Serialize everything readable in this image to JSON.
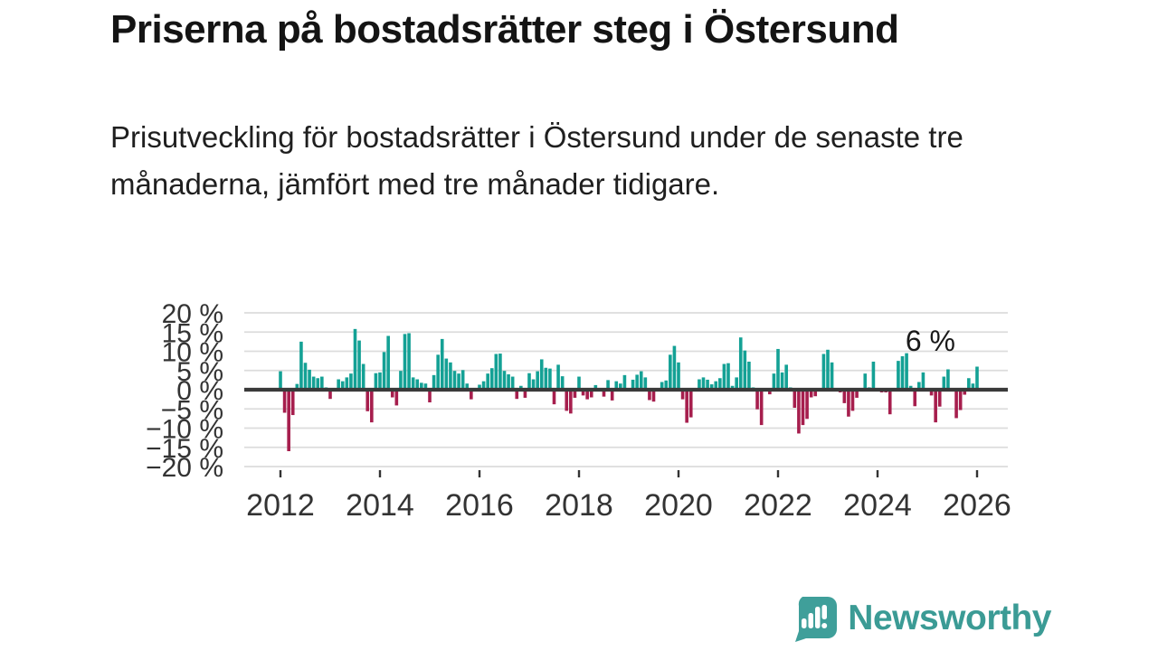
{
  "page": {
    "title": "Priserna på bostadsrätter steg i Östersund",
    "subtitle": "Prisutveckling för bostadsrätter i Östersund under de senaste tre månaderna, jämfört med tre månader tidigare."
  },
  "chart_data": {
    "type": "bar",
    "title": "Priserna på bostadsrätter steg i Östersund",
    "xlabel": "",
    "ylabel": "",
    "unit": "%",
    "frequency": "monthly",
    "start_month": "2012-01",
    "end_month": "2026-01",
    "ylim": [
      -20,
      20
    ],
    "grid": true,
    "legend": "none",
    "yticks": [
      20,
      15,
      10,
      5,
      0,
      -5,
      -10,
      -15,
      -20
    ],
    "ytick_labels": [
      "20 %",
      "15 %",
      "10 %",
      "5 %",
      "0 %",
      "−5 %",
      "−10 %",
      "−15 %",
      "−20 %"
    ],
    "xtick_labels": [
      "2012",
      "2014",
      "2016",
      "2018",
      "2020",
      "2022",
      "2024",
      "2026"
    ],
    "annotation": {
      "text": "6 %",
      "value": 6,
      "month": "2026-01"
    },
    "colors": {
      "positive": "#14a195",
      "negative": "#a61e4d",
      "zero_line": "#3a3a3a",
      "gridline": "#dcdcdc",
      "axis_text": "#333333",
      "annotation_text": "#1a1a1a"
    },
    "values": [
      4.8,
      -6.0,
      -16.0,
      -6.6,
      1.5,
      12.5,
      7.0,
      5.2,
      3.4,
      3.0,
      3.4,
      0.6,
      -2.4,
      0.0,
      2.7,
      2.2,
      3.2,
      4.2,
      15.8,
      12.8,
      6.7,
      -5.6,
      -8.5,
      4.3,
      4.5,
      9.8,
      14.0,
      -2.0,
      -4.1,
      4.9,
      14.5,
      14.7,
      3.2,
      2.7,
      1.8,
      1.6,
      -3.3,
      3.8,
      9.1,
      13.2,
      8.1,
      7.1,
      4.9,
      4.2,
      5.1,
      1.6,
      -2.5,
      0.0,
      1.3,
      2.2,
      4.2,
      5.6,
      9.3,
      9.4,
      4.9,
      4.0,
      3.4,
      -2.4,
      1.0,
      -2.1,
      4.3,
      2.7,
      4.8,
      7.9,
      5.7,
      5.5,
      -3.8,
      6.5,
      3.5,
      -5.5,
      -6.2,
      -2.1,
      3.4,
      -1.5,
      -2.5,
      -2.0,
      1.2,
      0.0,
      -1.8,
      2.5,
      -2.8,
      2.2,
      1.6,
      3.8,
      0.0,
      2.6,
      3.9,
      4.8,
      3.2,
      -2.7,
      -3.1,
      0.0,
      2.0,
      2.4,
      9.1,
      11.4,
      7.1,
      -2.5,
      -8.6,
      -7.2,
      0.0,
      2.7,
      3.2,
      2.6,
      1.4,
      2.2,
      3.0,
      6.7,
      6.9,
      1.0,
      3.2,
      13.6,
      10.2,
      7.3,
      0.6,
      -5.1,
      -9.2,
      0.0,
      -1.2,
      4.2,
      10.6,
      4.5,
      6.5,
      0.6,
      -4.7,
      -11.4,
      -9.2,
      -7.6,
      -2.0,
      -1.7,
      0.0,
      9.3,
      10.4,
      7.1,
      0.0,
      -0.7,
      -3.5,
      -7.0,
      -5.5,
      -2.1,
      0.0,
      4.2,
      0.6,
      7.3,
      0.0,
      -0.7,
      -0.7,
      -6.4,
      0.0,
      7.5,
      8.7,
      9.5,
      1.0,
      -4.3,
      2.0,
      4.5,
      0.0,
      -1.5,
      -8.5,
      -4.4,
      3.4,
      5.3,
      0.0,
      -7.4,
      -5.3,
      -1.3,
      3.0,
      1.6,
      6.0
    ]
  },
  "footer": {
    "brand": "Newsworthy",
    "logo_icon": "speech-bubble-bar-chart",
    "logo_color": "#3b9b95"
  }
}
